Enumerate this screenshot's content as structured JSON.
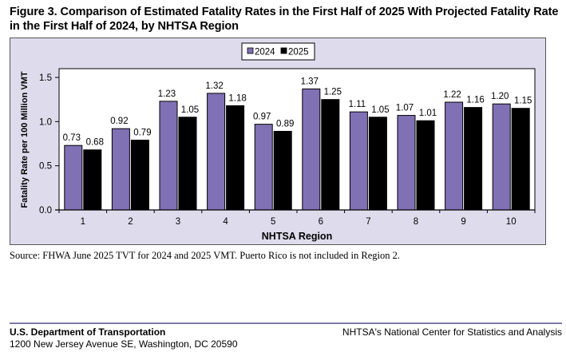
{
  "figure": {
    "title": "Figure 3. Comparison of Estimated Fatality Rates in the First Half of 2025 With Projected Fatality Rate in the First Half of 2024, by NHTSA Region",
    "source_note": "Source: FHWA June 2025 TVT for 2024 and 2025 VMT. Puerto Rico is not included in Region 2."
  },
  "footer": {
    "org_name": "U.S. Department of Transportation",
    "address": "1200 New Jersey Avenue SE, Washington, DC 20590",
    "center_name": "NHTSA's National Center for Statistics and Analysis"
  },
  "chart_data": {
    "type": "bar",
    "title": "",
    "xlabel": "NHTSA Region",
    "ylabel": "Fatality Rate per 100 Million VMT",
    "categories": [
      "1",
      "2",
      "3",
      "4",
      "5",
      "6",
      "7",
      "8",
      "9",
      "10"
    ],
    "ylim": [
      0,
      1.6
    ],
    "yticks": [
      0.0,
      0.5,
      1.0,
      1.5
    ],
    "ytick_labels": [
      "0.0",
      "0.5",
      "1.0",
      "1.5"
    ],
    "grid": false,
    "legend_position": "top-center",
    "series": [
      {
        "name": "2024",
        "color": "#8070b4",
        "values": [
          0.73,
          0.92,
          1.23,
          1.32,
          0.97,
          1.37,
          1.11,
          1.07,
          1.22,
          1.2
        ],
        "labels": [
          "0.73",
          "0.92",
          "1.23",
          "1.32",
          "0.97",
          "1.37",
          "1.11",
          "1.07",
          "1.22",
          "1.20"
        ]
      },
      {
        "name": "2025",
        "color": "#000000",
        "values": [
          0.68,
          0.79,
          1.05,
          1.18,
          0.89,
          1.25,
          1.05,
          1.01,
          1.16,
          1.15
        ],
        "labels": [
          "0.68",
          "0.79",
          "1.05",
          "1.18",
          "0.89",
          "1.25",
          "1.05",
          "1.01",
          "1.16",
          "1.15"
        ]
      }
    ]
  }
}
